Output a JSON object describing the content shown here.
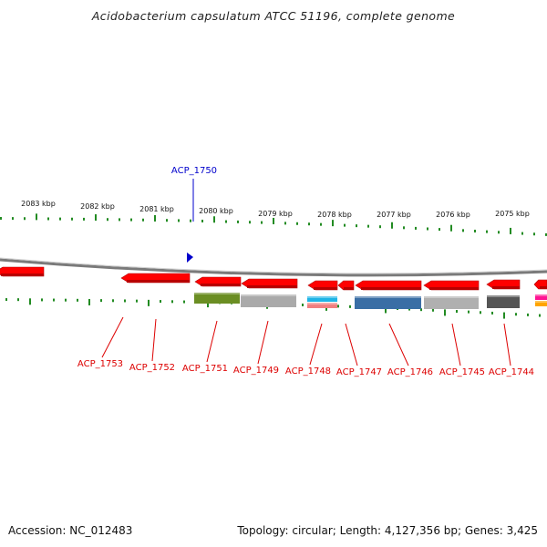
{
  "title": "Acidobacterium capsulatum ATCC 51196, complete genome",
  "footer": {
    "accession": "Accession: NC_012483",
    "topology": "Topology: circular; Length: 4,127,356 bp; Genes: 3,425"
  },
  "colors": {
    "forward_gene": "#e31a1c",
    "reverse_gene": "#ff0000",
    "highlight_gene": "#0000cc",
    "tick": "#228b22",
    "backbone": "#888888",
    "label_forward": "#0000cc",
    "label_reverse": "#dd0000"
  },
  "scale_labels": [
    "2083 kbp",
    "2082 kbp",
    "2081 kbp",
    "2080 kbp",
    "2079 kbp",
    "2078 kbp",
    "2077 kbp",
    "2076 kbp",
    "2075 kbp"
  ],
  "genes": [
    {
      "id": "ACP_1750",
      "strand": "forward",
      "highlight": true
    },
    {
      "id": "ACP_1753",
      "strand": "reverse"
    },
    {
      "id": "ACP_1752",
      "strand": "reverse"
    },
    {
      "id": "ACP_1751",
      "strand": "reverse"
    },
    {
      "id": "ACP_1749",
      "strand": "reverse"
    },
    {
      "id": "ACP_1748",
      "strand": "reverse"
    },
    {
      "id": "ACP_1747",
      "strand": "reverse"
    },
    {
      "id": "ACP_1746",
      "strand": "reverse"
    },
    {
      "id": "ACP_1745",
      "strand": "reverse"
    },
    {
      "id": "ACP_1744",
      "strand": "reverse"
    }
  ],
  "feature_track_colors": [
    "#6b8e23",
    "#aaaaaa",
    "#1eb4e6",
    "#f08080",
    "#3a6ea5",
    "#b0b0b0",
    "#555555",
    "#ff1493",
    "#ffa500"
  ]
}
